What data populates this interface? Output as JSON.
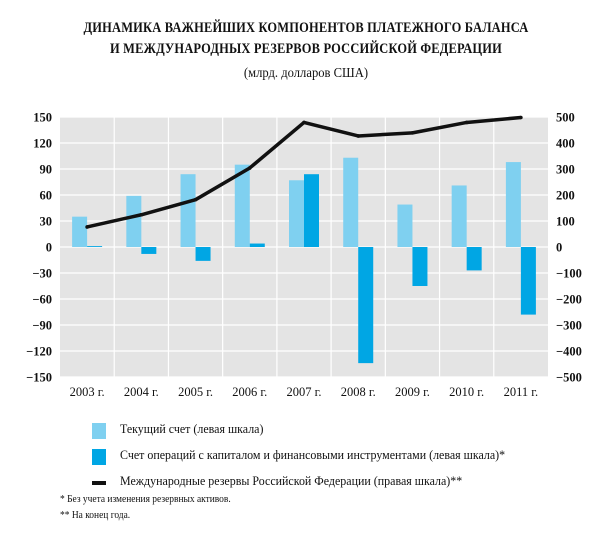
{
  "title_lines": [
    "ДИНАМИКА ВАЖНЕЙШИХ КОМПОНЕНТОВ ПЛАТЕЖНОГО БАЛАНСА",
    "И МЕЖДУНАРОДНЫХ РЕЗЕРВОВ РОССИЙСКОЙ ФЕДЕРАЦИИ"
  ],
  "subtitle": "(млрд. долларов США)",
  "chart_data": {
    "type": "bar",
    "title": "ДИНАМИКА ВАЖНЕЙШИХ КОМПОНЕНТОВ ПЛАТЕЖНОГО БАЛАНСА И МЕЖДУНАРОДНЫХ РЕЗЕРВОВ РОССИЙСКОЙ ФЕДЕРАЦИИ",
    "subtitle": "(млрд. долларов США)",
    "categories": [
      "2003 г.",
      "2004 г.",
      "2005 г.",
      "2006 г.",
      "2007 г.",
      "2008 г.",
      "2009 г.",
      "2010 г.",
      "2011 г."
    ],
    "left_axis": {
      "ylim": [
        -150,
        150
      ],
      "ticks": [
        150,
        120,
        90,
        60,
        30,
        0,
        -30,
        -60,
        -90,
        -120,
        -150
      ]
    },
    "right_axis": {
      "ylim": [
        -500,
        500
      ],
      "ticks": [
        500,
        400,
        300,
        200,
        100,
        0,
        -100,
        -200,
        -300,
        -400,
        -500
      ]
    },
    "grid": true,
    "legend_position": "bottom",
    "series": [
      {
        "name": "Текущий счет (левая шкала)",
        "type": "bar",
        "axis": "left",
        "color": "#7fd0f0",
        "values": [
          35,
          59,
          84,
          95,
          77,
          103,
          49,
          71,
          98
        ]
      },
      {
        "name": "Счет операций с капиталом и финансовыми инструментами (левая шкала)*",
        "type": "bar",
        "axis": "left",
        "color": "#00a6e4",
        "values": [
          1,
          -8,
          -16,
          4,
          84,
          -134,
          -45,
          -27,
          -78
        ]
      },
      {
        "name": "Международные резервы Российской Федерации (правая шкала)**",
        "type": "line",
        "axis": "right",
        "color": "#111111",
        "values": [
          77,
          124,
          182,
          304,
          479,
          427,
          439,
          479,
          498
        ]
      }
    ]
  },
  "notes": [
    "* Без учета изменения резервных активов.",
    "** На конец года."
  ]
}
